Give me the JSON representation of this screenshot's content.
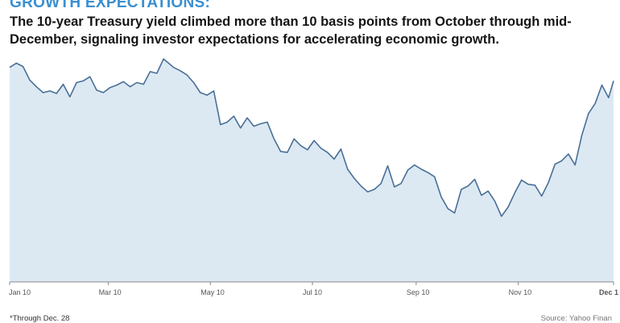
{
  "header": {
    "title": "GROWTH EXPECTATIONS:",
    "subtitle": "The 10-year Treasury yield climbed more than 10 basis points from October through mid-December, signaling investor expectations for accelerating economic growth."
  },
  "footer": {
    "note": "*Through Dec. 28",
    "source": "Source: Yahoo Finan"
  },
  "colors": {
    "title": "#3a8fd0",
    "line": "#4a6f96",
    "area": "#dce9f3",
    "axis": "#888888"
  },
  "chart_data": {
    "type": "area",
    "title": "",
    "xlabel": "",
    "ylabel": "",
    "x_ticks": [
      "Jan 10",
      "Mar 10",
      "May 10",
      "Jul 10",
      "Sep 10",
      "Nov 10",
      "Dec 1"
    ],
    "grid": false,
    "legend": "none",
    "ylim": [
      0,
      270
    ],
    "series": [
      {
        "x": [
          "2010-01-01",
          "2010-01-05",
          "2010-01-09",
          "2010-01-13",
          "2010-01-17",
          "2010-01-21",
          "2010-01-25",
          "2010-01-29",
          "2010-02-02",
          "2010-02-06",
          "2010-02-10",
          "2010-02-14",
          "2010-02-18",
          "2010-02-22",
          "2010-02-26",
          "2010-03-02",
          "2010-03-06",
          "2010-03-10",
          "2010-03-14",
          "2010-03-18",
          "2010-03-22",
          "2010-03-26",
          "2010-03-30",
          "2010-04-03",
          "2010-04-06",
          "2010-04-09",
          "2010-04-13",
          "2010-04-17",
          "2010-04-21",
          "2010-04-25",
          "2010-04-29",
          "2010-05-03",
          "2010-05-07",
          "2010-05-11",
          "2010-05-15",
          "2010-05-19",
          "2010-05-23",
          "2010-05-27",
          "2010-05-31",
          "2010-06-04",
          "2010-06-08",
          "2010-06-12",
          "2010-06-16",
          "2010-06-20",
          "2010-06-24",
          "2010-06-28",
          "2010-07-02",
          "2010-07-06",
          "2010-07-10",
          "2010-07-14",
          "2010-07-18",
          "2010-07-22",
          "2010-07-26",
          "2010-07-30",
          "2010-08-03",
          "2010-08-07",
          "2010-08-11",
          "2010-08-15",
          "2010-08-19",
          "2010-08-23",
          "2010-08-27",
          "2010-08-31",
          "2010-09-04",
          "2010-09-08",
          "2010-09-12",
          "2010-09-16",
          "2010-09-20",
          "2010-09-24",
          "2010-09-28",
          "2010-10-02",
          "2010-10-06",
          "2010-10-10",
          "2010-10-14",
          "2010-10-18",
          "2010-10-22",
          "2010-10-26",
          "2010-10-30",
          "2010-11-03",
          "2010-11-07",
          "2010-11-11",
          "2010-11-15",
          "2010-11-19",
          "2010-11-23",
          "2010-11-27",
          "2010-12-01",
          "2010-12-05",
          "2010-12-09",
          "2010-12-13",
          "2010-12-17",
          "2010-12-21",
          "2010-12-25",
          "2010-12-28"
        ],
        "values": [
          255,
          260,
          256,
          240,
          232,
          225,
          227,
          224,
          235,
          220,
          237,
          239,
          244,
          228,
          225,
          231,
          234,
          238,
          232,
          237,
          235,
          250,
          248,
          265,
          260,
          255,
          251,
          246,
          237,
          225,
          222,
          227,
          187,
          190,
          197,
          183,
          195,
          185,
          188,
          190,
          170,
          155,
          154,
          170,
          162,
          157,
          168,
          159,
          154,
          146,
          158,
          134,
          123,
          114,
          107,
          110,
          117,
          138,
          113,
          117,
          133,
          139,
          134,
          130,
          125,
          101,
          87,
          82,
          110,
          114,
          122,
          103,
          108,
          96,
          78,
          89,
          106,
          121,
          116,
          115,
          102,
          118,
          140,
          144,
          152,
          139,
          174,
          200,
          212,
          234,
          219,
          239
        ]
      }
    ]
  }
}
